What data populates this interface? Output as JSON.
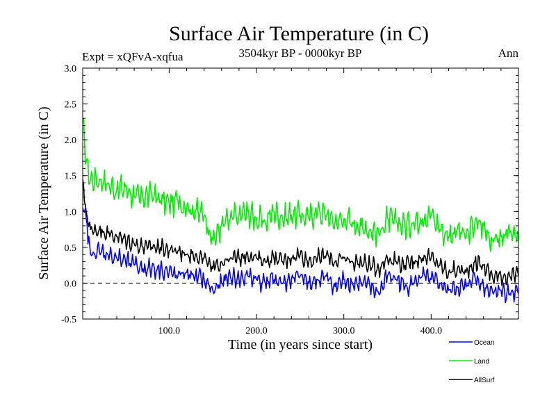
{
  "chart_data": {
    "type": "line",
    "title": "Surface Air Temperature (in C)",
    "subtitle": "3504kyr BP - 0000kyr BP",
    "expt_label": "Expt = xQFvA-xqfua",
    "season": "Ann",
    "xlabel": "Time (in years since start)",
    "ylabel": "Surface Air Temperature (in C)",
    "xlim": [
      1,
      500
    ],
    "ylim": [
      -0.5,
      3.0
    ],
    "x_ticks": [
      100,
      200,
      300,
      400
    ],
    "x_tick_labels": [
      "100.0",
      "200.0",
      "300.0",
      "400.0"
    ],
    "y_ticks": [
      -0.5,
      0.0,
      0.5,
      1.0,
      1.5,
      2.0,
      2.5,
      3.0
    ],
    "y_tick_labels": [
      "-0.5",
      "0.0",
      "0.5",
      "1.0",
      "1.5",
      "2.0",
      "2.5",
      "3.0"
    ],
    "reference_line": 0.0,
    "legend_position": "bottom-right",
    "series": [
      {
        "name": "Ocean",
        "color": "#0000ff",
        "x": [
          1,
          5,
          10,
          20,
          30,
          40,
          50,
          60,
          70,
          80,
          90,
          100,
          110,
          120,
          130,
          140,
          150,
          160,
          170,
          180,
          190,
          200,
          210,
          220,
          230,
          240,
          250,
          260,
          270,
          280,
          290,
          300,
          310,
          320,
          330,
          340,
          350,
          360,
          370,
          380,
          390,
          400,
          410,
          420,
          430,
          440,
          450,
          460,
          470,
          480,
          490,
          500
        ],
        "values": [
          1.05,
          0.9,
          0.4,
          0.45,
          0.4,
          0.35,
          0.3,
          0.25,
          0.2,
          0.2,
          0.2,
          0.15,
          0.1,
          0.15,
          0.1,
          0.05,
          -0.1,
          0.0,
          0.1,
          0.05,
          0.1,
          0.05,
          0.0,
          0.05,
          0.0,
          0.05,
          0.1,
          0.0,
          0.05,
          0.1,
          -0.05,
          0.05,
          0.0,
          0.0,
          -0.05,
          -0.15,
          0.1,
          0.05,
          -0.05,
          0.0,
          0.1,
          0.05,
          0.0,
          -0.1,
          -0.05,
          -0.05,
          0.1,
          -0.05,
          -0.1,
          -0.1,
          -0.15,
          -0.15
        ]
      },
      {
        "name": "Land",
        "color": "#00ee00",
        "x": [
          1,
          5,
          10,
          20,
          30,
          40,
          50,
          60,
          70,
          80,
          90,
          100,
          110,
          120,
          130,
          140,
          150,
          160,
          170,
          180,
          190,
          200,
          210,
          220,
          230,
          240,
          250,
          260,
          270,
          280,
          290,
          300,
          310,
          320,
          330,
          340,
          350,
          360,
          370,
          380,
          390,
          400,
          410,
          420,
          430,
          440,
          450,
          460,
          470,
          480,
          490,
          500
        ],
        "values": [
          2.3,
          1.7,
          1.45,
          1.45,
          1.4,
          1.3,
          1.35,
          1.2,
          1.2,
          1.25,
          1.15,
          1.1,
          1.15,
          1.05,
          1.0,
          0.95,
          0.6,
          0.8,
          0.9,
          0.95,
          1.0,
          0.9,
          0.85,
          1.0,
          0.9,
          0.95,
          0.95,
          0.9,
          1.0,
          0.95,
          0.85,
          0.9,
          0.85,
          0.8,
          0.75,
          0.7,
          0.9,
          0.85,
          0.8,
          0.85,
          0.9,
          0.95,
          0.75,
          0.65,
          0.75,
          0.65,
          0.85,
          0.8,
          0.6,
          0.65,
          0.7,
          0.6
        ]
      },
      {
        "name": "AllSurf",
        "color": "#000000",
        "x": [
          1,
          5,
          10,
          20,
          30,
          40,
          50,
          60,
          70,
          80,
          90,
          100,
          110,
          120,
          130,
          140,
          150,
          160,
          170,
          180,
          190,
          200,
          210,
          220,
          230,
          240,
          250,
          260,
          270,
          280,
          290,
          300,
          310,
          320,
          330,
          340,
          350,
          360,
          370,
          380,
          390,
          400,
          410,
          420,
          430,
          440,
          450,
          460,
          470,
          480,
          490,
          500
        ],
        "values": [
          1.45,
          1.0,
          0.75,
          0.75,
          0.7,
          0.65,
          0.6,
          0.55,
          0.5,
          0.5,
          0.5,
          0.45,
          0.45,
          0.4,
          0.4,
          0.35,
          0.2,
          0.3,
          0.35,
          0.35,
          0.4,
          0.35,
          0.3,
          0.35,
          0.3,
          0.35,
          0.4,
          0.3,
          0.35,
          0.4,
          0.3,
          0.35,
          0.3,
          0.3,
          0.25,
          0.2,
          0.35,
          0.3,
          0.25,
          0.3,
          0.35,
          0.35,
          0.25,
          0.15,
          0.2,
          0.15,
          0.3,
          0.25,
          0.1,
          0.1,
          0.1,
          0.1
        ]
      }
    ]
  }
}
